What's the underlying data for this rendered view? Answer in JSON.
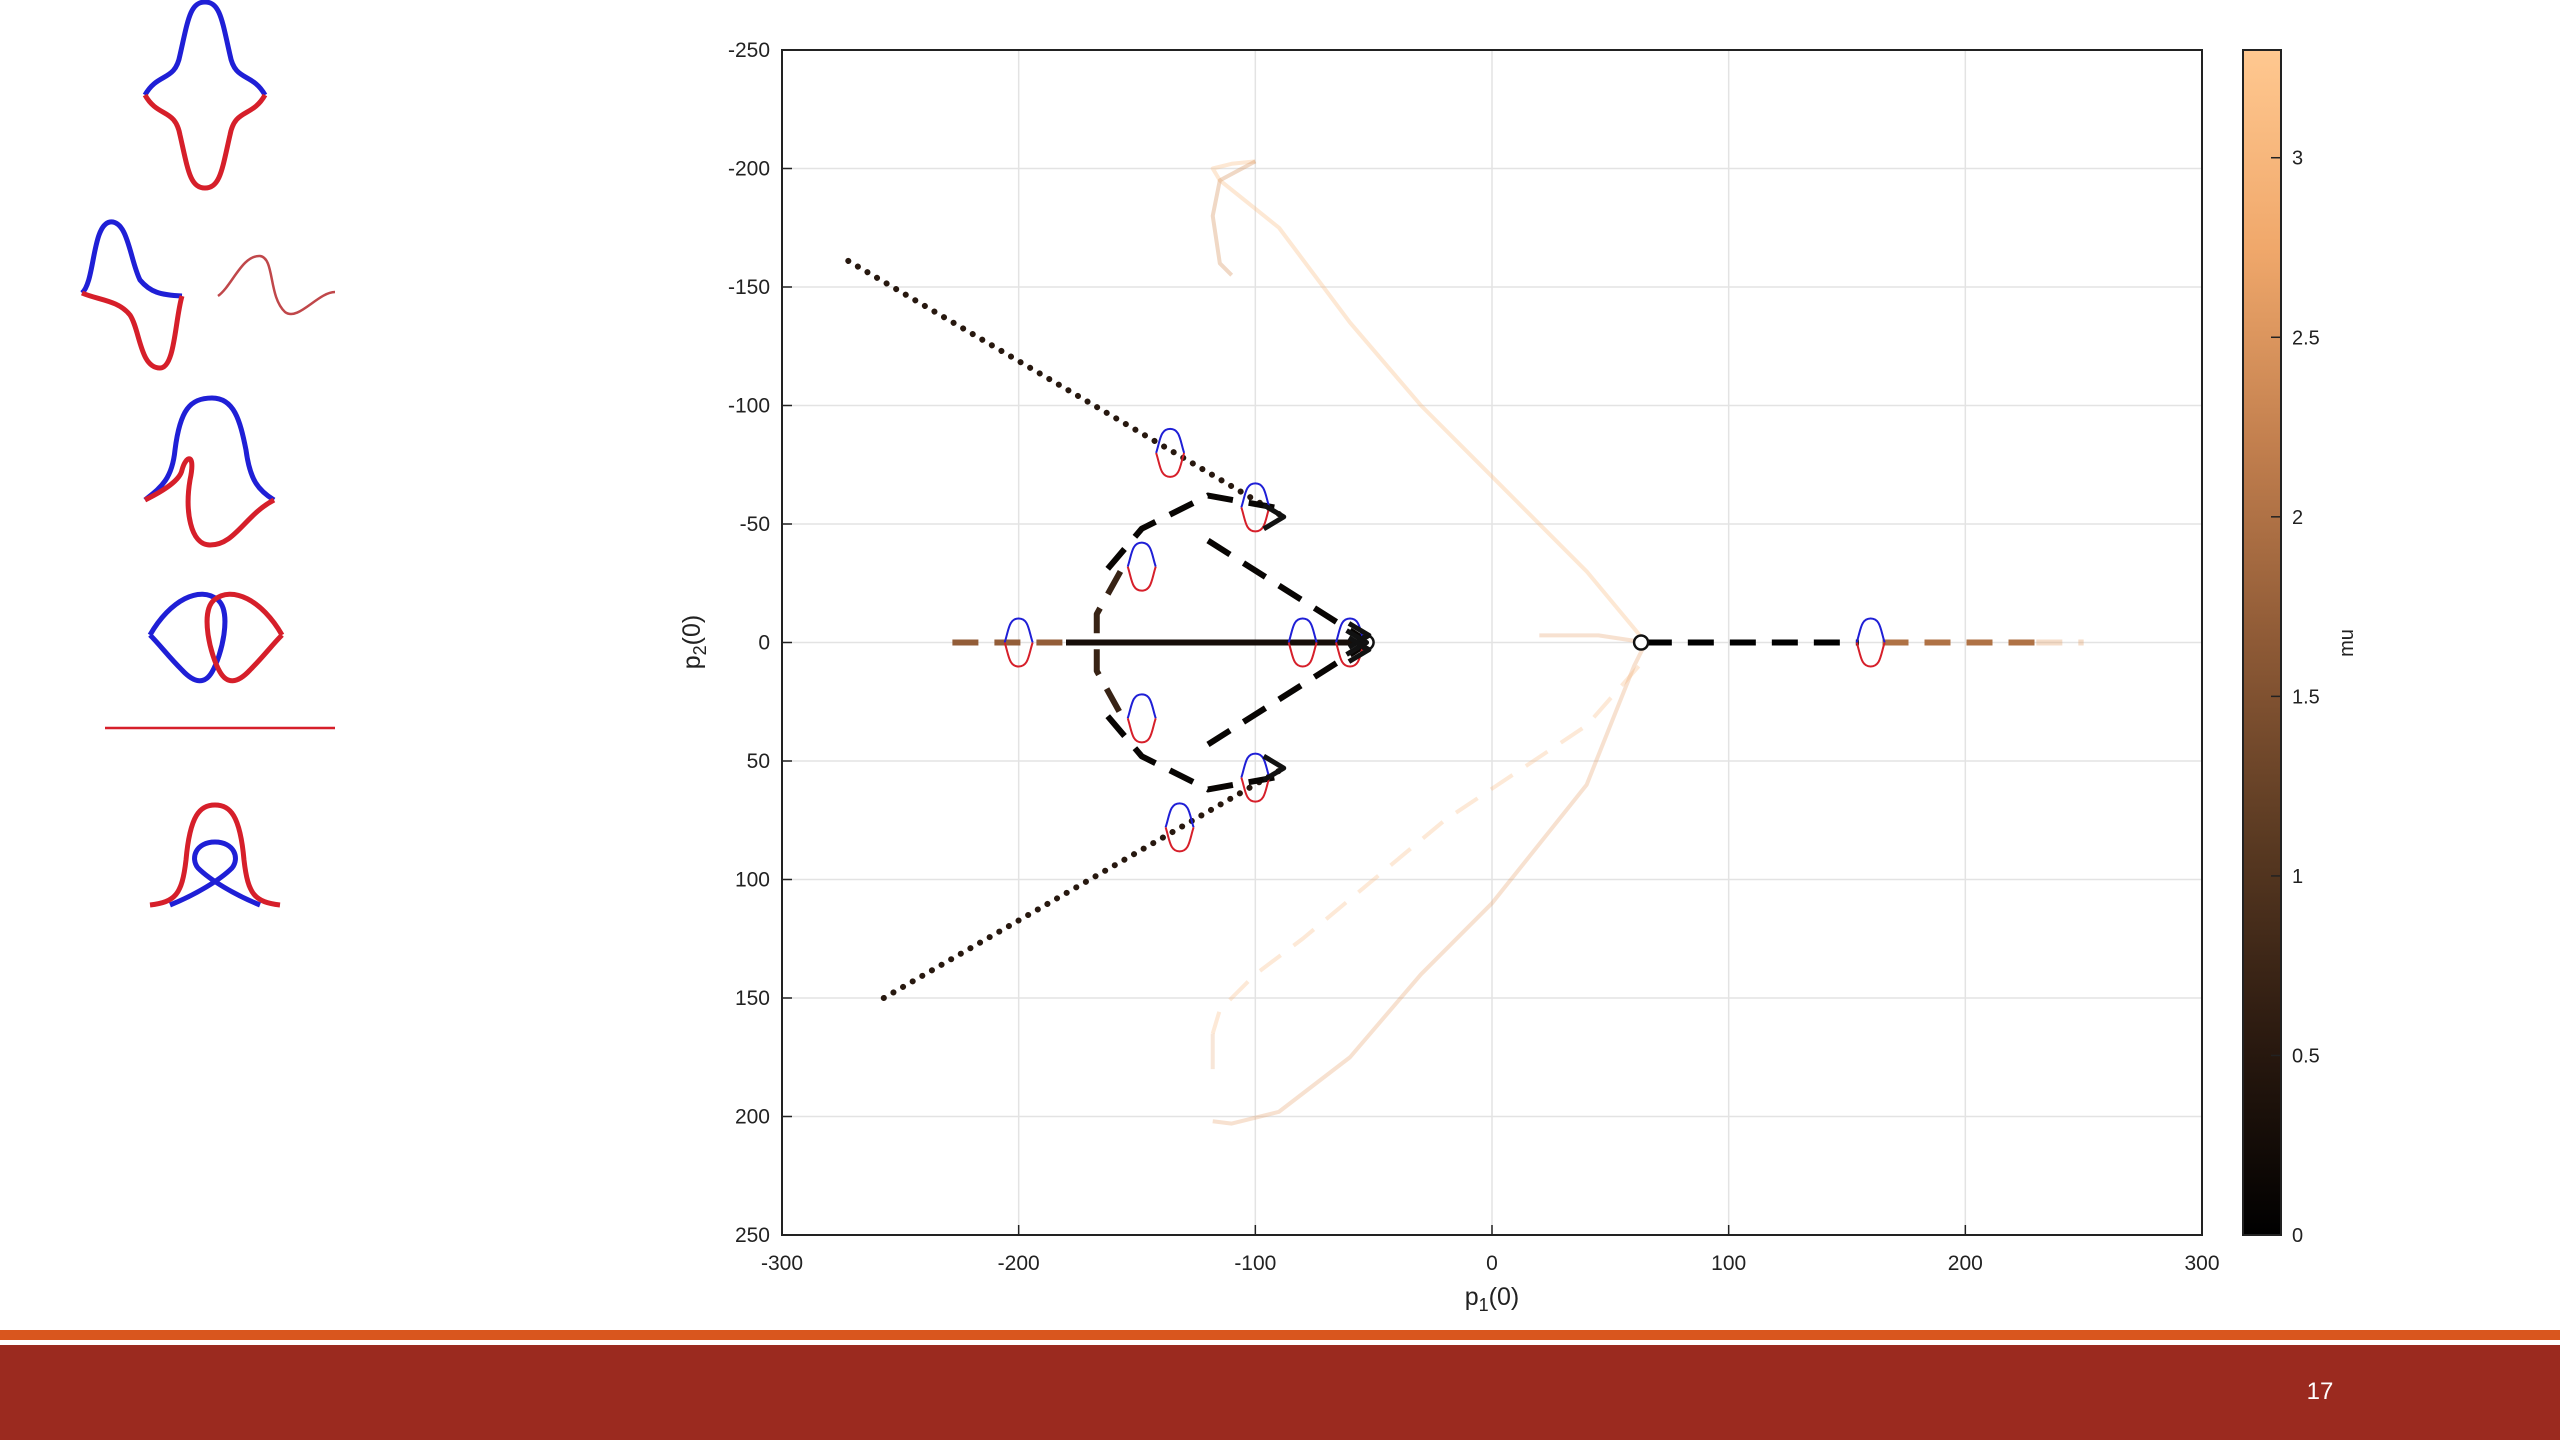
{
  "colors": {
    "blue_curve": "#1f1fd6",
    "red_curve": "#d61f2a",
    "footer_bar": "#9b2a1f",
    "footer_line": "#d9561e",
    "page_number": "#ffffff",
    "colormap": [
      "#000000",
      "#2b1a10",
      "#5a3a22",
      "#8e5a36",
      "#c27f4e",
      "#f0a86b",
      "#ffc890"
    ]
  },
  "footer": {
    "page_number": "17"
  },
  "chart_data": {
    "type": "scatter",
    "title": "",
    "xlabel_main": "p",
    "xlabel_sub": "1",
    "xlabel_tail": "(0)",
    "ylabel_main": "p",
    "ylabel_sub": "2",
    "ylabel_tail": "(0)",
    "xlim": [
      -300,
      300
    ],
    "ylim": [
      -250,
      250
    ],
    "y_reversed": true,
    "grid": true,
    "xticks": [
      -300,
      -200,
      -100,
      0,
      100,
      200,
      300
    ],
    "xtick_labels": [
      "-300",
      "-200",
      "-100",
      "0",
      "100",
      "200",
      "300"
    ],
    "yticks": [
      -250,
      -200,
      -150,
      -100,
      -50,
      0,
      50,
      100,
      150,
      200,
      250
    ],
    "ytick_labels": [
      "-250",
      "-200",
      "-150",
      "-100",
      "-50",
      "0",
      "50",
      "100",
      "150",
      "200",
      "250"
    ],
    "colorbar": {
      "label": "mu",
      "range": [
        0,
        3.3
      ],
      "ticks": [
        0,
        0.5,
        1,
        1.5,
        2,
        2.5,
        3
      ],
      "tick_labels": [
        "0",
        "0.5",
        "1",
        "1.5",
        "2",
        "2.5",
        "3"
      ]
    },
    "series": [
      {
        "style": "dotted",
        "mu": 0.5,
        "x": [
          -272,
          -88
        ],
        "y": [
          -161,
          -53
        ]
      },
      {
        "style": "dotted",
        "mu": 0.5,
        "x": [
          -257,
          -88
        ],
        "y": [
          150,
          53
        ]
      },
      {
        "style": "dashed",
        "mu": 0.1,
        "x": [
          -92,
          -120,
          -148,
          -165
        ],
        "y": [
          -57,
          -62,
          -48,
          -28
        ]
      },
      {
        "style": "dashed",
        "mu": 0.1,
        "x": [
          -92,
          -120,
          -148,
          -165
        ],
        "y": [
          57,
          62,
          48,
          28
        ]
      },
      {
        "style": "dashed",
        "mu": 0.1,
        "x": [
          -120,
          -52
        ],
        "y": [
          -43,
          0
        ]
      },
      {
        "style": "dashed",
        "mu": 0.1,
        "x": [
          -120,
          -52
        ],
        "y": [
          43,
          0
        ]
      },
      {
        "style": "dashed",
        "mu": 0.7,
        "x": [
          -157,
          -167,
          -167,
          -157
        ],
        "y": [
          -30,
          -12,
          12,
          30
        ]
      },
      {
        "style": "solid",
        "mu": 0.3,
        "x": [
          -180,
          -53
        ],
        "y": [
          0,
          0
        ]
      },
      {
        "style": "dashed",
        "mu": 1.7,
        "x": [
          -228,
          -180
        ],
        "y": [
          0,
          0
        ]
      },
      {
        "style": "dashed",
        "mu": 0.0,
        "x": [
          65,
          155
        ],
        "y": [
          0,
          0
        ]
      },
      {
        "style": "dashed",
        "mu": 2.0,
        "x": [
          165,
          230
        ],
        "y": [
          0,
          0
        ]
      },
      {
        "style": "dashed",
        "mu": 2.6,
        "x": [
          230,
          250
        ],
        "y": [
          0,
          0
        ],
        "opacity": 0.35
      },
      {
        "style": "solid",
        "mu": 3.1,
        "x": [
          65,
          40,
          0,
          -30,
          -60,
          -90,
          -115,
          -118,
          -110,
          -100
        ],
        "y": [
          0,
          -30,
          -70,
          -100,
          -135,
          -175,
          -195,
          -200,
          -202,
          -203
        ],
        "opacity": 0.35,
        "width": 4
      },
      {
        "style": "solid",
        "mu": 2.4,
        "x": [
          -100,
          -115,
          -118,
          -115,
          -110
        ],
        "y": [
          -203,
          -195,
          -180,
          -160,
          -155
        ],
        "opacity": 0.35,
        "width": 4
      },
      {
        "style": "solid",
        "mu": 2.6,
        "x": [
          65,
          60,
          40,
          0,
          -30,
          -60,
          -90,
          -110,
          -118
        ],
        "y": [
          0,
          10,
          60,
          110,
          140,
          175,
          198,
          203,
          202
        ],
        "opacity": 0.3,
        "width": 4
      },
      {
        "style": "dashed",
        "mu": 3.0,
        "x": [
          62,
          40,
          10,
          -20,
          -50,
          -80,
          -100,
          -110,
          -115,
          -118
        ],
        "y": [
          10,
          35,
          55,
          75,
          100,
          125,
          140,
          150,
          155,
          165
        ],
        "opacity": 0.3,
        "width": 4
      },
      {
        "style": "solid",
        "mu": 2.6,
        "x": [
          65,
          45,
          20
        ],
        "y": [
          0,
          -3,
          -3
        ],
        "opacity": 0.3,
        "width": 4
      },
      {
        "style": "solid",
        "mu": 2.6,
        "x": [
          -118,
          -118
        ],
        "y": [
          165,
          180
        ],
        "opacity": 0.25,
        "width": 4
      }
    ],
    "markers": [
      {
        "shape": "circle",
        "x": 63,
        "y": 0
      },
      {
        "shape": "circle",
        "x": -53,
        "y": 0
      },
      {
        "shape": "arrow",
        "x": -53,
        "y": 0
      },
      {
        "shape": "arrow",
        "x": -88,
        "y": -53
      },
      {
        "shape": "arrow",
        "x": -88,
        "y": 53
      },
      {
        "shape": "arrow",
        "x": -52,
        "y": -3
      },
      {
        "shape": "arrow",
        "x": -52,
        "y": 3
      }
    ],
    "glyphs": [
      {
        "x": -136,
        "y": -80
      },
      {
        "x": -100,
        "y": -57
      },
      {
        "x": -148,
        "y": -32
      },
      {
        "x": -200,
        "y": 0
      },
      {
        "x": -80,
        "y": 0
      },
      {
        "x": -60,
        "y": 0
      },
      {
        "x": 160,
        "y": 0
      },
      {
        "x": -148,
        "y": 32
      },
      {
        "x": -100,
        "y": 57
      },
      {
        "x": -132,
        "y": 78
      }
    ]
  }
}
